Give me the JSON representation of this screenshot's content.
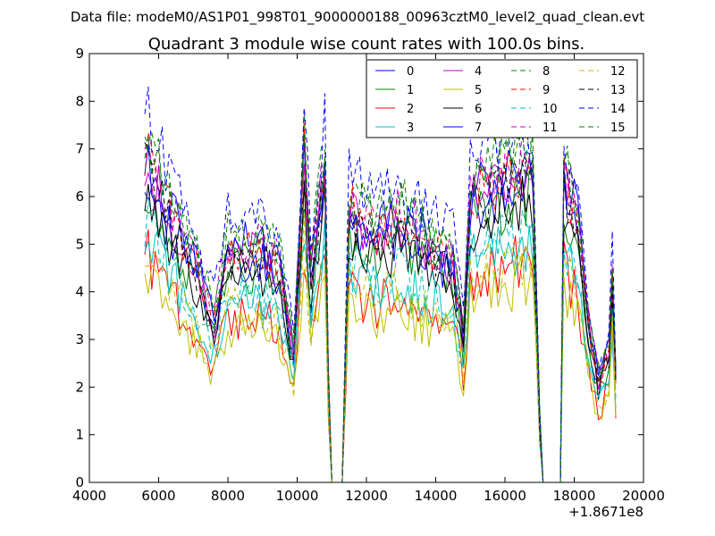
{
  "chart_data": {
    "type": "line",
    "suptitle": "Data file: modeM0/AS1P01_998T01_9000000188_00963cztM0_level2_quad_clean.evt",
    "title": "Quadrant 3 module wise count rates with 100.0s bins.",
    "xlabel": "",
    "ylabel": "",
    "xlim": [
      4000,
      20000
    ],
    "ylim": [
      0,
      9
    ],
    "x_ticks": [
      "4000",
      "6000",
      "8000",
      "10000",
      "12000",
      "14000",
      "16000",
      "18000",
      "20000"
    ],
    "y_ticks": [
      "0",
      "1",
      "2",
      "3",
      "4",
      "5",
      "6",
      "7",
      "8",
      "9"
    ],
    "x_offset_label": "+1.8671e8",
    "x_start": 5600,
    "x_step": 100,
    "bin_seconds": 100.0,
    "legend_location": "upper right",
    "legend_columns": 4,
    "series": [
      {
        "name": "0",
        "color": "#0000ff",
        "style": "solid",
        "base": 5.2,
        "seed": 11
      },
      {
        "name": "1",
        "color": "#008000",
        "style": "solid",
        "base": 5.0,
        "seed": 23
      },
      {
        "name": "2",
        "color": "#ff0000",
        "style": "solid",
        "base": 3.9,
        "seed": 37
      },
      {
        "name": "3",
        "color": "#00bfbf",
        "style": "solid",
        "base": 4.2,
        "seed": 41
      },
      {
        "name": "4",
        "color": "#bf00bf",
        "style": "solid",
        "base": 5.4,
        "seed": 53
      },
      {
        "name": "5",
        "color": "#bfbf00",
        "style": "solid",
        "base": 3.6,
        "seed": 67
      },
      {
        "name": "6",
        "color": "#000000",
        "style": "solid",
        "base": 4.9,
        "seed": 71
      },
      {
        "name": "7",
        "color": "#0000ff",
        "style": "solid",
        "base": 5.6,
        "seed": 83
      },
      {
        "name": "8",
        "color": "#008000",
        "style": "dashed",
        "base": 5.9,
        "seed": 97
      },
      {
        "name": "9",
        "color": "#ff0000",
        "style": "dashed",
        "base": 5.5,
        "seed": 101
      },
      {
        "name": "10",
        "color": "#00bfbf",
        "style": "dashed",
        "base": 4.4,
        "seed": 113
      },
      {
        "name": "11",
        "color": "#bf00bf",
        "style": "dashed",
        "base": 5.7,
        "seed": 127
      },
      {
        "name": "12",
        "color": "#bfbf00",
        "style": "dashed",
        "base": 4.0,
        "seed": 131
      },
      {
        "name": "13",
        "color": "#000000",
        "style": "dashed",
        "base": 5.3,
        "seed": 149
      },
      {
        "name": "14",
        "color": "#0000ff",
        "style": "dashed",
        "base": 6.3,
        "seed": 157
      },
      {
        "name": "15",
        "color": "#008000",
        "style": "dashed",
        "base": 5.8,
        "seed": 163
      }
    ],
    "profile_knots": [
      [
        5600,
        1.25
      ],
      [
        6400,
        1.0
      ],
      [
        7000,
        0.85
      ],
      [
        7600,
        0.62
      ],
      [
        8000,
        0.9
      ],
      [
        9000,
        0.88
      ],
      [
        9500,
        0.82
      ],
      [
        9900,
        0.5
      ],
      [
        10200,
        1.25
      ],
      [
        10400,
        0.8
      ],
      [
        10800,
        1.2
      ],
      [
        10950,
        0.0
      ],
      [
        11300,
        0.0
      ],
      [
        11500,
        1.05
      ],
      [
        12200,
        0.95
      ],
      [
        13000,
        1.0
      ],
      [
        13800,
        0.9
      ],
      [
        14500,
        0.85
      ],
      [
        14800,
        0.55
      ],
      [
        15000,
        1.1
      ],
      [
        16000,
        1.15
      ],
      [
        16800,
        1.2
      ],
      [
        17050,
        0.0
      ],
      [
        17600,
        0.0
      ],
      [
        17700,
        1.15
      ],
      [
        18100,
        1.0
      ],
      [
        18400,
        0.6
      ],
      [
        18700,
        0.38
      ],
      [
        19000,
        0.5
      ],
      [
        19100,
        0.8
      ],
      [
        19200,
        0.4
      ]
    ]
  }
}
